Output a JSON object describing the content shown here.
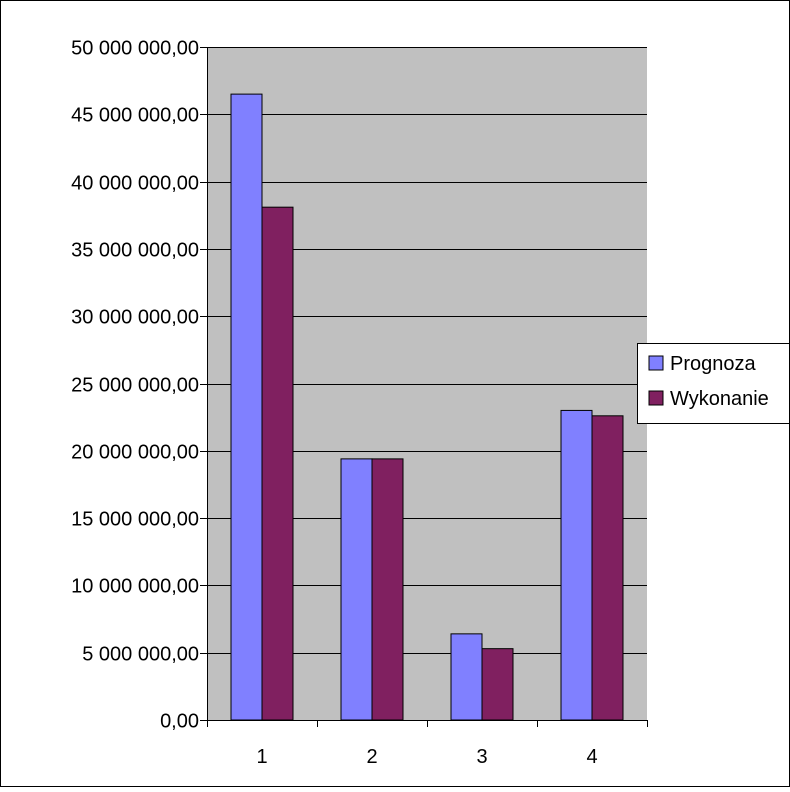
{
  "chart_data": {
    "type": "bar",
    "title": "",
    "xlabel": "",
    "ylabel": "",
    "categories": [
      "1",
      "2",
      "3",
      "4"
    ],
    "series": [
      {
        "name": "Prognoza",
        "color": "#8080ff",
        "values": [
          46500000,
          19400000,
          6400000,
          23000000
        ]
      },
      {
        "name": "Wykonanie",
        "color": "#802060",
        "values": [
          38100000,
          19400000,
          5300000,
          22600000
        ]
      }
    ],
    "ylim": [
      0,
      50000000
    ],
    "yticks": [
      0,
      5000000,
      10000000,
      15000000,
      20000000,
      25000000,
      30000000,
      35000000,
      40000000,
      45000000,
      50000000
    ],
    "ytick_labels": [
      "0,00",
      "5 000 000,00",
      "10 000 000,00",
      "15 000 000,00",
      "20 000 000,00",
      "25 000 000,00",
      "30 000 000,00",
      "35 000 000,00",
      "40 000 000,00",
      "45 000 000,00",
      "50 000 000,00"
    ],
    "grid": true,
    "plot_background": "#c0c0c0",
    "legend_position": "right"
  }
}
